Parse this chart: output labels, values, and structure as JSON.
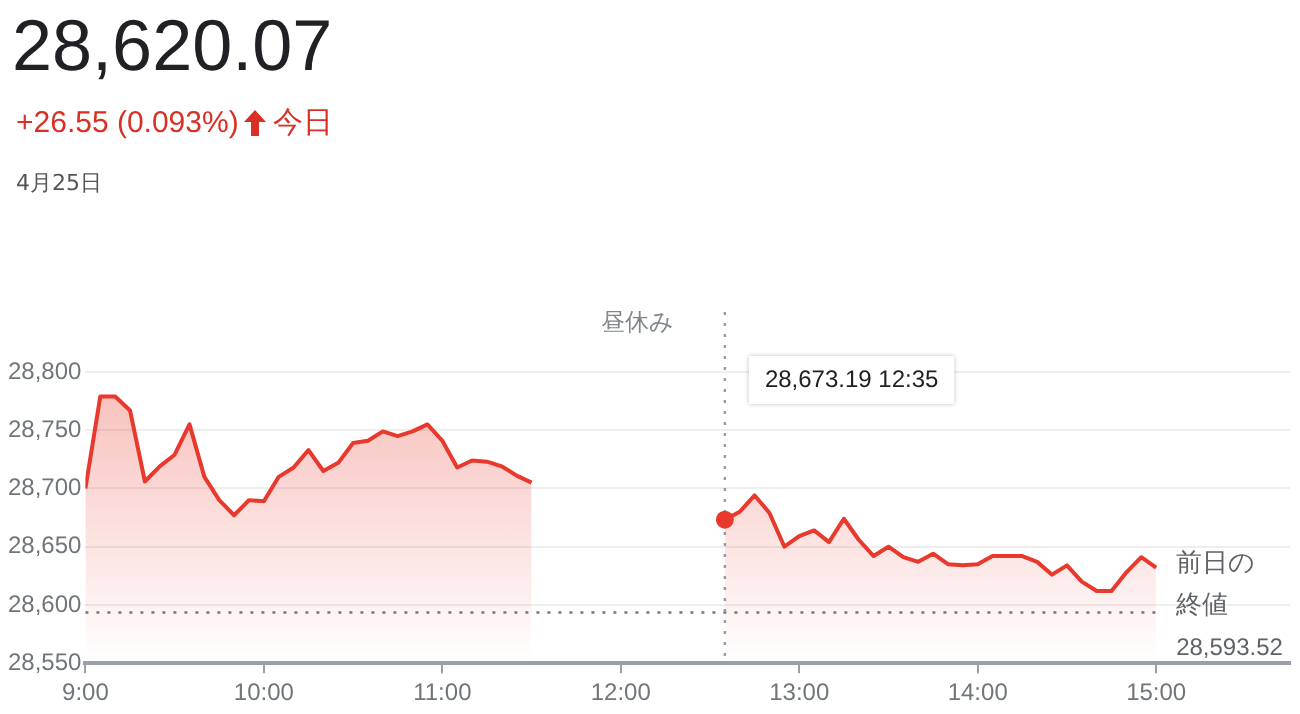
{
  "chart_data": {
    "type": "area",
    "title": "28,620.07",
    "subtitle": "+26.55 (0.093%)",
    "annotations": [
      "今日",
      "4月25日",
      "昼休み",
      "28,673.19 12:35",
      "28,593.52"
    ],
    "series": [
      {
        "color": "#e8392c",
        "x": [
          9,
          9.0833,
          9.1667,
          9.25,
          9.3333,
          9.4167,
          9.5,
          9.5833,
          9.6667,
          9.75,
          9.8333,
          9.9167,
          10,
          10.0833,
          10.1667,
          10.25,
          10.3333,
          10.4167,
          10.5,
          10.5833,
          10.6667,
          10.75,
          10.8333,
          10.9167,
          11,
          11.0833,
          11.1667,
          11.25,
          11.3333,
          11.4167,
          11.5
        ],
        "values": [
          28700,
          28779,
          28779,
          28767,
          28706,
          28719,
          28729,
          28755,
          28710,
          28690,
          28677,
          28690,
          28689,
          28710,
          28718,
          28733,
          28715,
          28722,
          28739,
          28741,
          28749,
          28745,
          28749,
          28755,
          28741,
          28718,
          28724,
          28723,
          28719,
          28711,
          28705
        ]
      },
      {
        "color": "#e8392c",
        "x": [
          12.5833,
          12.6667,
          12.75,
          12.8333,
          12.9167,
          13,
          13.0833,
          13.1667,
          13.25,
          13.3333,
          13.4167,
          13.5,
          13.5833,
          13.6667,
          13.75,
          13.8333,
          13.9167,
          14,
          14.0833,
          14.1667,
          14.25,
          14.3333,
          14.4167,
          14.5,
          14.5833,
          14.6667,
          14.75,
          14.8333,
          14.9167,
          15
        ],
        "values": [
          28673.19,
          28680,
          28694,
          28679,
          28650,
          28659,
          28664,
          28654,
          28674,
          28656,
          28642,
          28650,
          28641,
          28637,
          28644,
          28635,
          28634,
          28635,
          28642,
          28642,
          28642,
          28637,
          28626,
          28634,
          28620,
          28612,
          28612,
          28628,
          28641,
          28632
        ]
      }
    ],
    "xlim": [
      9,
      15.75
    ],
    "xticks": [
      {
        "value": 9,
        "label": "9:00"
      },
      {
        "value": 10,
        "label": "10:00"
      },
      {
        "value": 11,
        "label": "11:00"
      },
      {
        "value": 12,
        "label": "12:00"
      },
      {
        "value": 13,
        "label": "13:00"
      },
      {
        "value": 14,
        "label": "14:00"
      },
      {
        "value": 15,
        "label": "15:00"
      }
    ],
    "ylim": [
      28550,
      28800
    ],
    "yticks": [
      {
        "value": 28550,
        "label": "28,550"
      },
      {
        "value": 28600,
        "label": "28,600"
      },
      {
        "value": 28650,
        "label": "28,650"
      },
      {
        "value": 28700,
        "label": "28,700"
      },
      {
        "value": 28750,
        "label": "28,750"
      },
      {
        "value": 28800,
        "label": "28,800"
      }
    ],
    "ref_lines": [
      {
        "axis": "y",
        "value": 28593.52,
        "label": "前日の終値",
        "line_style": "dotted",
        "color": "#777777"
      },
      {
        "axis": "x",
        "value": 12.5833,
        "label": null,
        "line_style": "dotted",
        "color": "#999999"
      }
    ],
    "grid": "y",
    "legend": false,
    "marker": "none",
    "line_style": "solid"
  }
}
